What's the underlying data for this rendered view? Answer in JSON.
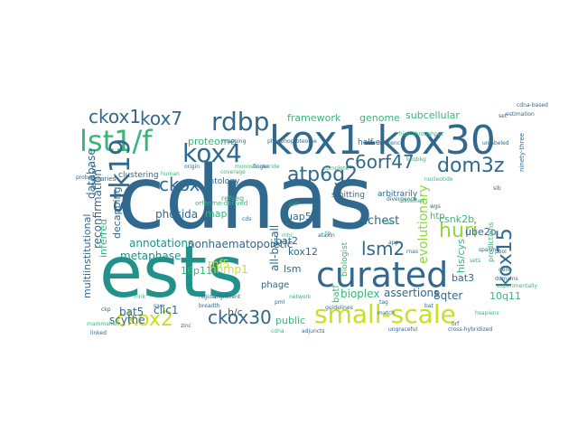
{
  "palette": {
    "dark_blue": "#31688e",
    "teal": "#21918c",
    "green": "#35b779",
    "yellow_green": "#90d743",
    "yellow": "#c8e020",
    "purple": "#440154",
    "indigo": "#3b528b",
    "background": "#ffffff"
  },
  "words": [
    {
      "text": "cdnas",
      "color": "#31688e"
    },
    {
      "text": "ests",
      "color": "#21918c"
    },
    {
      "text": "kox1-kox30",
      "color": "#31688e"
    },
    {
      "text": "curated",
      "color": "#31688e"
    },
    {
      "text": "small-scale",
      "color": "#c8e020"
    },
    {
      "text": "lst1/f",
      "color": "#35b779"
    },
    {
      "text": "stk19",
      "color": "#31688e"
    },
    {
      "text": "rdbp",
      "color": "#31688e"
    },
    {
      "text": "kox4",
      "color": "#31688e"
    },
    {
      "text": "atp6g2",
      "color": "#31688e"
    },
    {
      "text": "c6orf47",
      "color": "#31688e"
    },
    {
      "text": "dom3z",
      "color": "#31688e"
    },
    {
      "text": "ckox1",
      "color": "#31688e"
    },
    {
      "text": "kox7",
      "color": "#31688e"
    },
    {
      "text": "ckox",
      "color": "#31688e"
    },
    {
      "text": "kox15",
      "color": "#31688e"
    },
    {
      "text": "huri",
      "color": "#90d743"
    },
    {
      "text": "lsm2",
      "color": "#31688e"
    },
    {
      "text": "ckox30",
      "color": "#31688e"
    },
    {
      "text": "ckox2",
      "color": "#c8e020"
    },
    {
      "text": "evolutionary",
      "color": "#90d743"
    },
    {
      "text": "all-by-all",
      "color": "#31688e"
    },
    {
      "text": "nonhaematopoietic",
      "color": "#31688e"
    },
    {
      "text": "annotations",
      "color": "#21918c"
    },
    {
      "text": "decapping",
      "color": "#31688e"
    },
    {
      "text": "database",
      "color": "#31688e"
    },
    {
      "text": "reconfirmation",
      "color": "#31688e"
    },
    {
      "text": "multiinstitutional",
      "color": "#31688e"
    },
    {
      "text": "phosida",
      "color": "#31688e"
    },
    {
      "text": "richest",
      "color": "#31688e"
    },
    {
      "text": "metaphase",
      "color": "#21918c"
    },
    {
      "text": "proteome",
      "color": "#35b779"
    },
    {
      "text": "framework",
      "color": "#35b779"
    },
    {
      "text": "genome",
      "color": "#35b779"
    },
    {
      "text": "subcellular",
      "color": "#35b779"
    },
    {
      "text": "csnk2b",
      "color": "#35b779"
    },
    {
      "text": "ube2o",
      "color": "#31688e"
    },
    {
      "text": "his/cys",
      "color": "#35b779"
    },
    {
      "text": "htp",
      "color": "#35b779"
    },
    {
      "text": "rnf5",
      "color": "#c8e020"
    },
    {
      "text": "hnrnp1",
      "color": "#c8e020"
    },
    {
      "text": "16p11",
      "color": "#35b779"
    },
    {
      "text": "clic1",
      "color": "#31688e"
    },
    {
      "text": "bat5",
      "color": "#31688e"
    },
    {
      "text": "scythe",
      "color": "#31688e"
    },
    {
      "text": "public",
      "color": "#35b779"
    },
    {
      "text": "lsm",
      "color": "#31688e"
    },
    {
      "text": "bat2",
      "color": "#31688e"
    },
    {
      "text": "uap56",
      "color": "#31688e"
    },
    {
      "text": "kox12",
      "color": "#31688e"
    },
    {
      "text": "bioplex",
      "color": "#35b779"
    },
    {
      "text": "assertions",
      "color": "#31688e"
    },
    {
      "text": "8qter",
      "color": "#31688e"
    },
    {
      "text": "10q11",
      "color": "#35b779"
    },
    {
      "text": "inferred",
      "color": "#35b779"
    },
    {
      "text": "map",
      "color": "#35b779"
    },
    {
      "text": "phage",
      "color": "#31688e"
    },
    {
      "text": "h/c",
      "color": "#31688e"
    },
    {
      "text": "bat3",
      "color": "#31688e"
    },
    {
      "text": "biologist",
      "color": "#35b779"
    },
    {
      "text": "ontology",
      "color": "#31688e"
    },
    {
      "text": "clustering",
      "color": "#31688e"
    },
    {
      "text": "helf-e",
      "color": "#31688e"
    },
    {
      "text": "smitting",
      "color": "#31688e"
    },
    {
      "text": "arbitrarily",
      "color": "#31688e"
    },
    {
      "text": "refseq",
      "color": "#35b779"
    },
    {
      "text": "orfeome-derived",
      "color": "#35b779"
    },
    {
      "text": "batf",
      "color": "#35b779"
    },
    {
      "text": "predictions",
      "color": "#35b779"
    },
    {
      "text": "ninety-three",
      "color": "#31688e"
    },
    {
      "text": "full-art",
      "color": "#31688e"
    },
    {
      "text": "libraries",
      "color": "#31688e"
    },
    {
      "text": "phosphoproteome",
      "color": "#31688e"
    },
    {
      "text": "high-throughput",
      "color": "#35b779"
    },
    {
      "text": "unlabeled",
      "color": "#31688e"
    },
    {
      "text": "classified",
      "color": "#35b779"
    },
    {
      "text": "cdna-based",
      "color": "#31688e"
    },
    {
      "text": "spacing",
      "color": "#31688e"
    },
    {
      "text": "experimentally",
      "color": "#35b779"
    },
    {
      "text": "hsapiens",
      "color": "#35b779"
    },
    {
      "text": "match",
      "color": "#31688e"
    },
    {
      "text": "divergence",
      "color": "#31688e"
    },
    {
      "text": "monosaccharide",
      "color": "#35b779"
    },
    {
      "text": "ungraceful",
      "color": "#31688e"
    },
    {
      "text": "adjuncts",
      "color": "#31688e"
    },
    {
      "text": "cross-hybridized",
      "color": "#31688e"
    },
    {
      "text": "network",
      "color": "#35b779"
    },
    {
      "text": "breadth",
      "color": "#31688e"
    },
    {
      "text": "reference",
      "color": "#31688e"
    },
    {
      "text": "guidelines",
      "color": "#31688e"
    },
    {
      "text": "origin",
      "color": "#31688e"
    },
    {
      "text": "coverage",
      "color": "#35b779"
    },
    {
      "text": "domains",
      "color": "#31688e"
    },
    {
      "text": "complete",
      "color": "#35b779"
    },
    {
      "text": "keqbkg",
      "color": "#35b779"
    },
    {
      "text": "probe",
      "color": "#31688e"
    },
    {
      "text": "tag",
      "color": "#31688e"
    },
    {
      "text": "bat",
      "color": "#31688e"
    },
    {
      "text": "pml",
      "color": "#31688e"
    },
    {
      "text": "mhc",
      "color": "#35b779"
    },
    {
      "text": "mapping",
      "color": "#31688e"
    },
    {
      "text": "estimation",
      "color": "#31688e"
    },
    {
      "text": "saw",
      "color": "#31688e"
    },
    {
      "text": "bait",
      "color": "#35b779"
    },
    {
      "text": "ataxin",
      "color": "#31688e"
    },
    {
      "text": "mammalian",
      "color": "#35b779"
    },
    {
      "text": "linked",
      "color": "#31688e"
    },
    {
      "text": "region",
      "color": "#31688e"
    },
    {
      "text": "human",
      "color": "#35b779"
    },
    {
      "text": "set",
      "color": "#31688e"
    },
    {
      "text": "cds",
      "color": "#31688e"
    },
    {
      "text": "zinc",
      "color": "#31688e"
    },
    {
      "text": "ckp",
      "color": "#31688e"
    },
    {
      "text": "mnk",
      "color": "#35b779"
    },
    {
      "text": "sib",
      "color": "#31688e"
    },
    {
      "text": "orf",
      "color": "#31688e"
    },
    {
      "text": "tb",
      "color": "#35b779"
    },
    {
      "text": "app",
      "color": "#31688e"
    },
    {
      "text": "rnas",
      "color": "#31688e"
    },
    {
      "text": "sets",
      "color": "#35b779"
    },
    {
      "text": "finger",
      "color": "#31688e"
    },
    {
      "text": "cell",
      "color": "#35b779"
    },
    {
      "text": "pool",
      "color": "#31688e"
    },
    {
      "text": "gene",
      "color": "#31688e"
    },
    {
      "text": "cdna",
      "color": "#35b779"
    },
    {
      "text": "alignment",
      "color": "#31688e"
    },
    {
      "text": "nucleotide",
      "color": "#35b779"
    },
    {
      "text": "wgs",
      "color": "#31688e"
    }
  ]
}
